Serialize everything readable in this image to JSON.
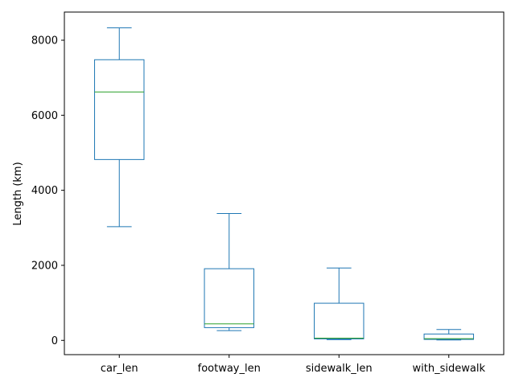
{
  "chart_data": {
    "type": "box",
    "title": "",
    "xlabel": "",
    "ylabel": "Length (km)",
    "ylim": [
      -380,
      8750
    ],
    "yticks": [
      0,
      2000,
      4000,
      6000,
      8000
    ],
    "grid": false,
    "colors": {
      "box": "#1f77b4",
      "median": "#2ca02c",
      "axis": "#000000"
    },
    "categories": [
      "car_len",
      "footway_len",
      "sidewalk_len",
      "with_sidewalk"
    ],
    "boxes": [
      {
        "name": "car_len",
        "whisker_low": 3030,
        "q1": 4820,
        "median": 6620,
        "q3": 7480,
        "whisker_high": 8330
      },
      {
        "name": "footway_len",
        "whisker_low": 260,
        "q1": 340,
        "median": 440,
        "q3": 1910,
        "whisker_high": 3380
      },
      {
        "name": "sidewalk_len",
        "whisker_low": 20,
        "q1": 40,
        "median": 60,
        "q3": 990,
        "whisker_high": 1930
      },
      {
        "name": "with_sidewalk",
        "whisker_low": 10,
        "q1": 25,
        "median": 45,
        "q3": 170,
        "whisker_high": 290
      }
    ]
  }
}
